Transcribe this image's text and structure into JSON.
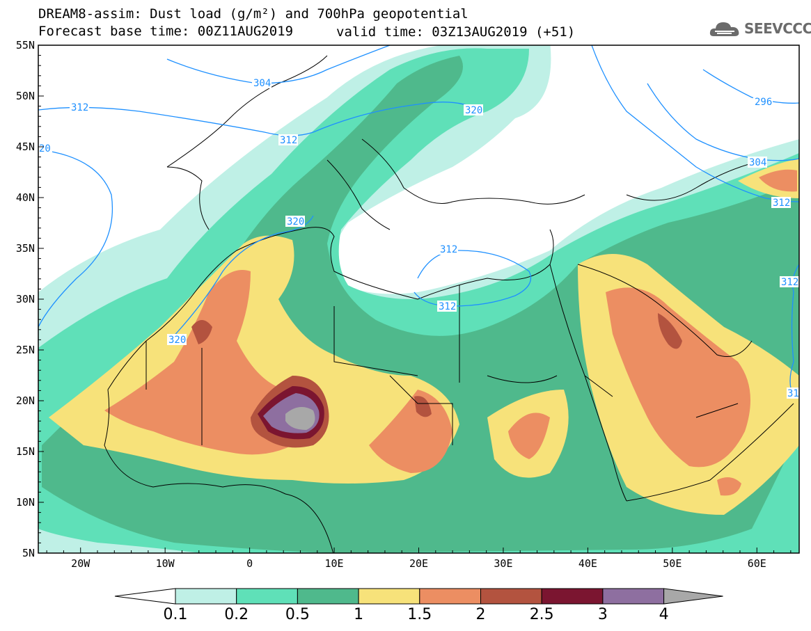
{
  "header": {
    "title": "DREAM8-assim: Dust load (g/m²) and 700hPa geopotential",
    "base_time": "Forecast base time: 00Z11AUG2019",
    "valid_time": "valid time: 03Z13AUG2019 (+51)"
  },
  "logo": {
    "text": "SEEVCCC",
    "icon": "cloud-icon"
  },
  "map": {
    "lon_range": [
      -25,
      65
    ],
    "lat_range": [
      5,
      55
    ],
    "lon_ticks": [
      "20W",
      "10W",
      "0",
      "10E",
      "20E",
      "30E",
      "40E",
      "50E",
      "60E"
    ],
    "lat_ticks": [
      "55N",
      "50N",
      "45N",
      "40N",
      "35N",
      "30N",
      "25N",
      "20N",
      "15N",
      "10N",
      "5N"
    ],
    "contour_labels": [
      "312",
      "304",
      "312",
      "320",
      "20",
      "320",
      "312",
      "312",
      "320",
      "296",
      "304",
      "312",
      "312",
      "31"
    ]
  },
  "colorbar": {
    "labels": [
      "0.1",
      "0.2",
      "0.5",
      "1",
      "1.5",
      "2",
      "2.5",
      "3",
      "4"
    ],
    "colors": [
      "#ffffff",
      "#bff0e6",
      "#5fe0b8",
      "#4fb98c",
      "#f7e27a",
      "#ec8e62",
      "#b3533f",
      "#7b1530",
      "#8e6fa0",
      "#a8a8a8"
    ]
  }
}
